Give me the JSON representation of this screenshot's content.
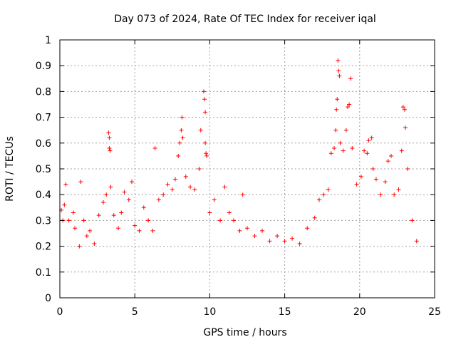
{
  "chart_data": {
    "type": "scatter",
    "title": "Day 073 of 2024, Rate Of TEC Index for receiver iqal",
    "xlabel": "GPS time / hours",
    "ylabel": "ROTI / TECUs",
    "xlim": [
      0,
      25
    ],
    "ylim": [
      0,
      1
    ],
    "xticks": [
      "0",
      "5",
      "10",
      "15",
      "20",
      "25"
    ],
    "yticks": [
      "0",
      "0.1",
      "0.2",
      "0.3",
      "0.4",
      "0.5",
      "0.6",
      "0.7",
      "0.8",
      "0.9",
      "1"
    ],
    "grid": true,
    "marker": "plus",
    "color": "#ff0000",
    "series": [
      {
        "points": [
          [
            0.1,
            0.34
          ],
          [
            0.2,
            0.3
          ],
          [
            0.3,
            0.36
          ],
          [
            0.4,
            0.44
          ],
          [
            0.6,
            0.3
          ],
          [
            0.9,
            0.33
          ],
          [
            1.0,
            0.27
          ],
          [
            1.3,
            0.2
          ],
          [
            1.4,
            0.45
          ],
          [
            1.6,
            0.3
          ],
          [
            1.8,
            0.24
          ],
          [
            2.0,
            0.26
          ],
          [
            2.3,
            0.21
          ],
          [
            2.6,
            0.32
          ],
          [
            2.9,
            0.37
          ],
          [
            3.1,
            0.4
          ],
          [
            3.25,
            0.64
          ],
          [
            3.3,
            0.62
          ],
          [
            3.3,
            0.58
          ],
          [
            3.35,
            0.57
          ],
          [
            3.4,
            0.43
          ],
          [
            3.6,
            0.32
          ],
          [
            3.9,
            0.27
          ],
          [
            4.1,
            0.33
          ],
          [
            4.3,
            0.41
          ],
          [
            4.6,
            0.38
          ],
          [
            4.8,
            0.45
          ],
          [
            5.0,
            0.28
          ],
          [
            5.3,
            0.26
          ],
          [
            5.6,
            0.35
          ],
          [
            5.9,
            0.3
          ],
          [
            6.2,
            0.26
          ],
          [
            6.35,
            0.58
          ],
          [
            6.6,
            0.38
          ],
          [
            6.9,
            0.4
          ],
          [
            7.2,
            0.44
          ],
          [
            7.5,
            0.42
          ],
          [
            7.7,
            0.46
          ],
          [
            7.9,
            0.55
          ],
          [
            8.0,
            0.6
          ],
          [
            8.1,
            0.65
          ],
          [
            8.15,
            0.7
          ],
          [
            8.2,
            0.62
          ],
          [
            8.4,
            0.47
          ],
          [
            8.7,
            0.43
          ],
          [
            9.0,
            0.42
          ],
          [
            9.3,
            0.5
          ],
          [
            9.4,
            0.65
          ],
          [
            9.6,
            0.8
          ],
          [
            9.65,
            0.77
          ],
          [
            9.7,
            0.72
          ],
          [
            9.75,
            0.56
          ],
          [
            9.8,
            0.55
          ],
          [
            9.7,
            0.6
          ],
          [
            10.0,
            0.33
          ],
          [
            10.3,
            0.38
          ],
          [
            10.7,
            0.3
          ],
          [
            11.0,
            0.43
          ],
          [
            11.3,
            0.33
          ],
          [
            11.6,
            0.3
          ],
          [
            12.0,
            0.26
          ],
          [
            12.2,
            0.4
          ],
          [
            12.5,
            0.27
          ],
          [
            13.0,
            0.24
          ],
          [
            13.5,
            0.26
          ],
          [
            14.0,
            0.22
          ],
          [
            14.5,
            0.24
          ],
          [
            15.0,
            0.22
          ],
          [
            15.5,
            0.23
          ],
          [
            16.0,
            0.21
          ],
          [
            16.5,
            0.27
          ],
          [
            17.0,
            0.31
          ],
          [
            17.3,
            0.38
          ],
          [
            17.6,
            0.4
          ],
          [
            17.9,
            0.42
          ],
          [
            18.1,
            0.56
          ],
          [
            18.3,
            0.58
          ],
          [
            18.4,
            0.65
          ],
          [
            18.45,
            0.73
          ],
          [
            18.5,
            0.77
          ],
          [
            18.55,
            0.92
          ],
          [
            18.6,
            0.88
          ],
          [
            18.65,
            0.86
          ],
          [
            18.7,
            0.6
          ],
          [
            18.9,
            0.57
          ],
          [
            19.1,
            0.65
          ],
          [
            19.2,
            0.74
          ],
          [
            19.3,
            0.75
          ],
          [
            19.4,
            0.85
          ],
          [
            19.5,
            0.58
          ],
          [
            19.8,
            0.44
          ],
          [
            20.1,
            0.47
          ],
          [
            20.3,
            0.57
          ],
          [
            20.5,
            0.56
          ],
          [
            20.6,
            0.61
          ],
          [
            20.8,
            0.62
          ],
          [
            20.9,
            0.5
          ],
          [
            21.1,
            0.46
          ],
          [
            21.4,
            0.4
          ],
          [
            21.7,
            0.45
          ],
          [
            21.9,
            0.53
          ],
          [
            22.1,
            0.55
          ],
          [
            22.3,
            0.4
          ],
          [
            22.6,
            0.42
          ],
          [
            22.8,
            0.57
          ],
          [
            22.9,
            0.74
          ],
          [
            23.0,
            0.73
          ],
          [
            23.05,
            0.66
          ],
          [
            23.2,
            0.5
          ],
          [
            23.5,
            0.3
          ],
          [
            23.8,
            0.22
          ]
        ]
      }
    ]
  }
}
